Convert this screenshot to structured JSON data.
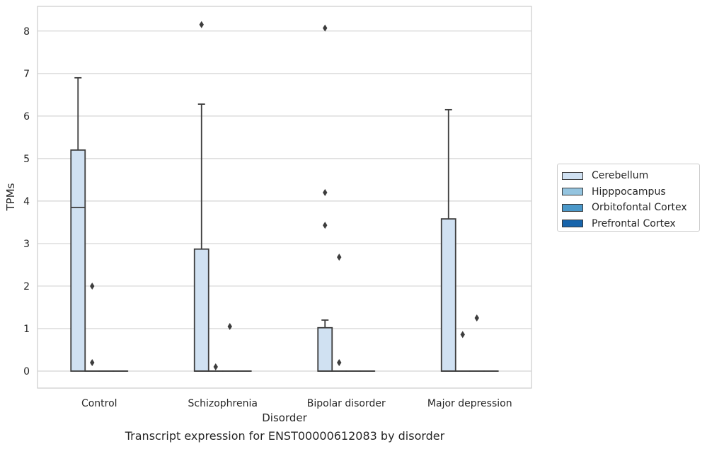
{
  "chart_data": {
    "type": "box",
    "title": "Transcript expression for ENST00000612083 by disorder",
    "xlabel": "Disorder",
    "ylabel": "TPMs",
    "ylim": [
      -0.4,
      8.58
    ],
    "yticks": [
      0,
      1,
      2,
      3,
      4,
      5,
      6,
      7,
      8
    ],
    "categories": [
      "Control",
      "Schizophrenia",
      "Bipolar disorder",
      "Major depression"
    ],
    "grid": "horizontal",
    "legend_position": "right",
    "series": [
      {
        "name": "Cerebellum",
        "color": "#d0e1f2",
        "boxes": [
          {
            "min": 0,
            "q1": 0,
            "median": 3.85,
            "q3": 5.2,
            "max": 6.9,
            "outliers": []
          },
          {
            "min": 0,
            "q1": 0,
            "median": 0,
            "q3": 2.87,
            "max": 6.28,
            "outliers": [
              8.15
            ]
          },
          {
            "min": 0,
            "q1": 0,
            "median": 0,
            "q3": 1.02,
            "max": 1.2,
            "outliers": [
              8.07,
              4.2,
              3.43
            ]
          },
          {
            "min": 0,
            "q1": 0,
            "median": 0,
            "q3": 3.58,
            "max": 6.15,
            "outliers": []
          }
        ]
      },
      {
        "name": "Hipppocampus",
        "color": "#94c4df",
        "boxes": [
          {
            "min": 0,
            "q1": 0,
            "median": 0,
            "q3": 0,
            "max": 0,
            "outliers": [
              2.0,
              0.2
            ]
          },
          {
            "min": 0,
            "q1": 0,
            "median": 0,
            "q3": 0,
            "max": 0,
            "outliers": [
              0.1
            ]
          },
          {
            "min": 0,
            "q1": 0,
            "median": 0,
            "q3": 0,
            "max": 0,
            "outliers": [
              2.68,
              0.2
            ]
          },
          {
            "min": 0,
            "q1": 0,
            "median": 0,
            "q3": 0,
            "max": 0,
            "outliers": [
              0.86
            ]
          }
        ]
      },
      {
        "name": "Orbitofontal Cortex",
        "color": "#4a98c9",
        "boxes": [
          {
            "min": 0,
            "q1": 0,
            "median": 0,
            "q3": 0,
            "max": 0,
            "outliers": []
          },
          {
            "min": 0,
            "q1": 0,
            "median": 0,
            "q3": 0,
            "max": 0,
            "outliers": [
              1.05
            ]
          },
          {
            "min": 0,
            "q1": 0,
            "median": 0,
            "q3": 0,
            "max": 0,
            "outliers": []
          },
          {
            "min": 0,
            "q1": 0,
            "median": 0,
            "q3": 0,
            "max": 0,
            "outliers": [
              1.25
            ]
          }
        ]
      },
      {
        "name": "Prefrontal Cortex",
        "color": "#1764ab",
        "boxes": [
          {
            "min": 0,
            "q1": 0,
            "median": 0,
            "q3": 0,
            "max": 0,
            "outliers": []
          },
          {
            "min": 0,
            "q1": 0,
            "median": 0,
            "q3": 0,
            "max": 0,
            "outliers": []
          },
          {
            "min": 0,
            "q1": 0,
            "median": 0,
            "q3": 0,
            "max": 0,
            "outliers": []
          },
          {
            "min": 0,
            "q1": 0,
            "median": 0,
            "q3": 0,
            "max": 0,
            "outliers": []
          }
        ]
      }
    ]
  }
}
